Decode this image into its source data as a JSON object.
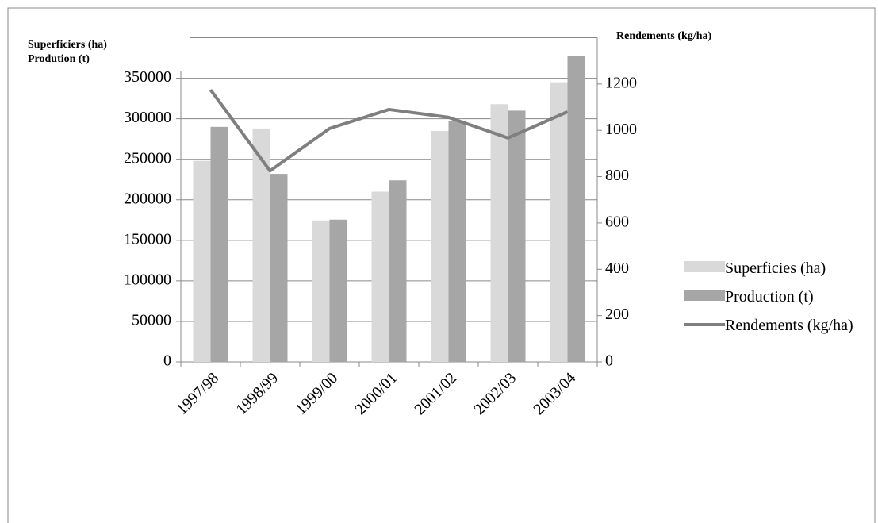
{
  "chart_data": {
    "type": "bar-line",
    "ylabel": [
      "Superficiers (ha)",
      "Prodution (t)"
    ],
    "y2label": "Rendements (kg/ha)",
    "categories": [
      "1997/98",
      "1998/99",
      "1999/00",
      "2000/01",
      "2001/02",
      "2002/03",
      "2003/04"
    ],
    "series": [
      {
        "name": "Superficies (ha)",
        "type": "bar",
        "color": "#d9d9d9",
        "values": [
          248000,
          288000,
          174500,
          210000,
          285000,
          318000,
          345000
        ]
      },
      {
        "name": "Production (t)",
        "type": "bar",
        "color": "#a6a6a6",
        "values": [
          290000,
          232000,
          175500,
          224000,
          297000,
          310000,
          377000
        ]
      },
      {
        "name": "Rendements (kg/ha)",
        "type": "line",
        "axis": "y2",
        "color": "#7f7f7f",
        "values": [
          1175,
          825,
          1008,
          1090,
          1056,
          967,
          1080
        ]
      }
    ],
    "ylim": [
      0,
      400000
    ],
    "yticks": [
      0,
      50000,
      100000,
      150000,
      200000,
      250000,
      300000,
      350000
    ],
    "y2lim": [
      0,
      1400
    ],
    "y2ticks": [
      0,
      200,
      400,
      600,
      800,
      1000,
      1200
    ],
    "grid": true
  }
}
